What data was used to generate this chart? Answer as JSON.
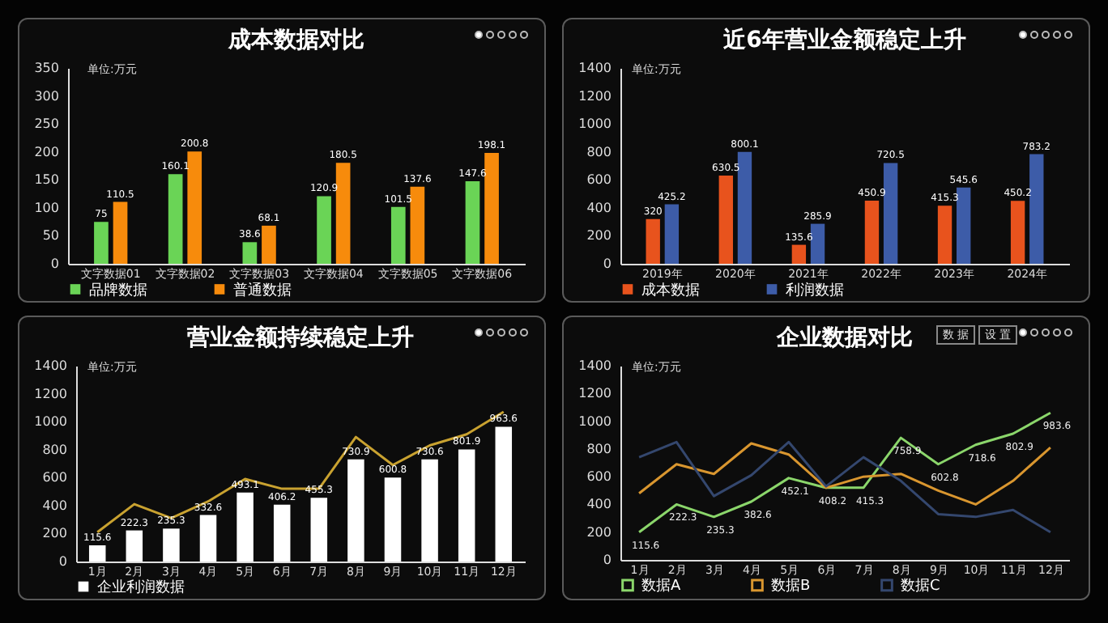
{
  "chart_data": [
    {
      "type": "bar",
      "title": "成本数据对比",
      "annotations": [
        "单位:万元"
      ],
      "categories": [
        "文字数据01",
        "文字数据02",
        "文字数据03",
        "文字数据04",
        "文字数据05",
        "文字数据06"
      ],
      "ylim": [
        0,
        350
      ],
      "yticks": [
        0,
        50,
        100,
        150,
        200,
        250,
        300,
        350
      ],
      "legend": "bottom",
      "data_labels": true,
      "series": [
        {
          "name": "品牌数据",
          "color": "#6ad456",
          "values": [
            75,
            160.1,
            38.6,
            120.9,
            101.5,
            147.6
          ]
        },
        {
          "name": "普通数据",
          "color": "#f78b0c",
          "values": [
            110.5,
            200.8,
            68.1,
            180.5,
            137.6,
            198.1
          ]
        }
      ]
    },
    {
      "type": "bar",
      "title": "近6年营业金额稳定上升",
      "annotations": [
        "单位:万元"
      ],
      "categories": [
        "2019年",
        "2020年",
        "2021年",
        "2022年",
        "2023年",
        "2024年"
      ],
      "ylim": [
        0,
        1400
      ],
      "yticks": [
        0,
        200,
        400,
        600,
        800,
        1000,
        1200,
        1400
      ],
      "legend": "bottom",
      "data_labels": true,
      "series": [
        {
          "name": "成本数据",
          "color": "#e8531d",
          "values": [
            320,
            630.5,
            135.6,
            450.9,
            415.3,
            450.2
          ]
        },
        {
          "name": "利润数据",
          "color": "#3d5ca8",
          "values": [
            425.2,
            800.1,
            285.9,
            720.5,
            545.6,
            783.2
          ]
        }
      ]
    },
    {
      "type": "bar",
      "title": "营业金额持续稳定上升",
      "annotations": [
        "单位:万元"
      ],
      "categories": [
        "1月",
        "2月",
        "3月",
        "4月",
        "5月",
        "6月",
        "7月",
        "8月",
        "9月",
        "10月",
        "11月",
        "12月"
      ],
      "ylim": [
        0,
        1400
      ],
      "yticks": [
        0,
        200,
        400,
        600,
        800,
        1000,
        1200,
        1400
      ],
      "legend": "bottom",
      "series": [
        {
          "name": "企业利润数据",
          "color": "#ffffff",
          "values": [
            115.6,
            222.3,
            235.3,
            332.6,
            493.1,
            406.2,
            455.3,
            730.9,
            600.8,
            730.6,
            801.9,
            963.6
          ],
          "value_labels": [
            "115.6",
            "222.3",
            "235.3",
            "332.6",
            "493.1",
            "406.2",
            "455.3",
            "730.9",
            "600.8",
            "730.6",
            "801.9",
            "963.6"
          ]
        },
        {
          "type": "line",
          "color": "#c9a230",
          "values": [
            210,
            410,
            310,
            430,
            590,
            520,
            520,
            890,
            690,
            830,
            910,
            1070
          ]
        }
      ]
    },
    {
      "type": "line",
      "title": "企业数据对比",
      "annotations": [
        "单位:万元",
        "设 置",
        "数 据",
        {
          "text": "115.6",
          "x": "1月",
          "y": 200
        },
        {
          "text": "222.3",
          "x": "2月",
          "y": 400
        },
        {
          "text": "235.3",
          "x": "3月",
          "y": 310
        },
        {
          "text": "382.6",
          "x": "4月",
          "y": 420
        },
        {
          "text": "452.1",
          "x": "5月",
          "y": 590
        },
        {
          "text": "408.2",
          "x": "6月",
          "y": 520
        },
        {
          "text": "415.3",
          "x": "7月",
          "y": 520
        },
        {
          "text": "758.9",
          "x": "8月",
          "y": 880
        },
        {
          "text": "602.8",
          "x": "9月",
          "y": 690
        },
        {
          "text": "718.6",
          "x": "10月",
          "y": 830
        },
        {
          "text": "802.9",
          "x": "11月",
          "y": 910
        },
        {
          "text": "983.6",
          "x": "12月",
          "y": 1060
        }
      ],
      "categories": [
        "1月",
        "2月",
        "3月",
        "4月",
        "5月",
        "6月",
        "7月",
        "8月",
        "9月",
        "10月",
        "11月",
        "12月"
      ],
      "ylim": [
        0,
        1400
      ],
      "yticks": [
        0,
        200,
        400,
        600,
        800,
        1000,
        1200,
        1400
      ],
      "legend": "bottom",
      "series": [
        {
          "name": "数据A",
          "color": "#8bd66b",
          "values": [
            200,
            400,
            310,
            420,
            590,
            520,
            520,
            880,
            690,
            830,
            910,
            1060
          ]
        },
        {
          "name": "数据B",
          "color": "#d9962f",
          "values": [
            480,
            690,
            620,
            840,
            760,
            520,
            600,
            620,
            500,
            400,
            570,
            810
          ]
        },
        {
          "name": "数据C",
          "color": "#34476e",
          "values": [
            740,
            850,
            460,
            610,
            850,
            530,
            740,
            570,
            330,
            310,
            360,
            200
          ]
        }
      ]
    }
  ]
}
